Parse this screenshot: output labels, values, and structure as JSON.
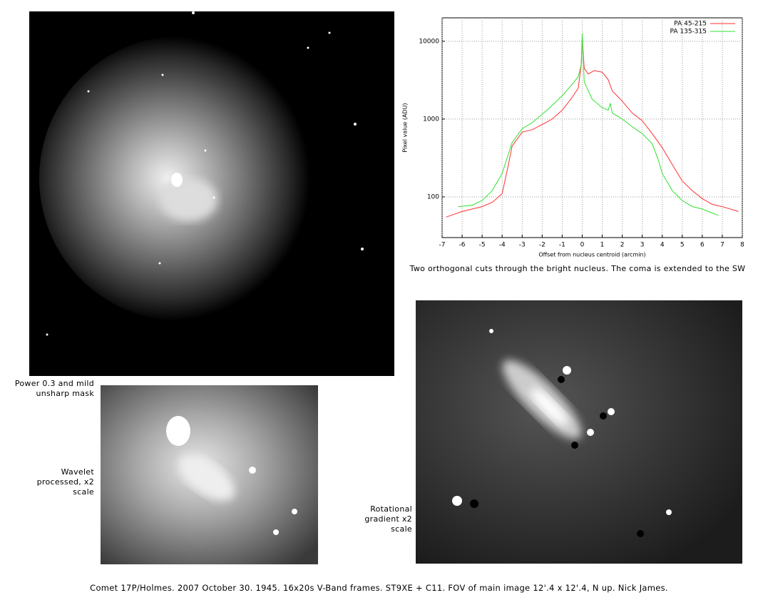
{
  "chart_data": {
    "type": "line",
    "x_label": "Offset from nucleus centroid (arcmin)",
    "y_label": "Pixel value (ADU)",
    "xlim": [
      -7,
      8
    ],
    "xticks": [
      -7,
      -6,
      -5,
      -4,
      -3,
      -2,
      -1,
      0,
      1,
      2,
      3,
      4,
      5,
      6,
      7,
      8
    ],
    "ylim": [
      30,
      20000
    ],
    "yticks": [
      100,
      1000,
      10000
    ],
    "log_y": true,
    "grid": true,
    "legend": "top-right",
    "series": [
      {
        "name": "PA 45-215",
        "color": "#ff3030",
        "x": [
          -6.8,
          -6,
          -5,
          -4.5,
          -4,
          -3.7,
          -3.5,
          -3,
          -2.5,
          -2,
          -1.5,
          -1,
          -0.5,
          -0.2,
          -0.05,
          0,
          0.1,
          0.3,
          0.6,
          1,
          1.3,
          1.5,
          2,
          2.5,
          3,
          3.5,
          4,
          4.5,
          5,
          5.5,
          6,
          6.5,
          7,
          7.8
        ],
        "values": [
          55,
          65,
          75,
          85,
          110,
          250,
          450,
          680,
          730,
          850,
          1000,
          1300,
          1900,
          2500,
          5000,
          11000,
          4500,
          3800,
          4200,
          4000,
          3200,
          2300,
          1700,
          1200,
          950,
          650,
          430,
          260,
          160,
          120,
          95,
          80,
          75,
          65
        ]
      },
      {
        "name": "PA 135-315",
        "color": "#30e030",
        "x": [
          -6.2,
          -5.5,
          -5,
          -4.5,
          -4,
          -3.5,
          -3,
          -2.5,
          -2,
          -1.5,
          -1,
          -0.5,
          -0.2,
          -0.05,
          0,
          0.1,
          0.5,
          1,
          1.3,
          1.4,
          1.5,
          2,
          2.5,
          3,
          3.5,
          3.8,
          4,
          4.5,
          5,
          5.5,
          6,
          6.5,
          6.8
        ],
        "values": [
          75,
          78,
          90,
          120,
          200,
          500,
          750,
          900,
          1150,
          1500,
          2000,
          2800,
          3500,
          5000,
          12500,
          3000,
          1800,
          1400,
          1300,
          1600,
          1200,
          1000,
          800,
          650,
          480,
          300,
          200,
          120,
          90,
          75,
          70,
          62,
          58
        ]
      }
    ]
  },
  "captions": {
    "chart": "Two orthogonal cuts through the bright nucleus. The coma is extended to the SW",
    "power": "Power 0.3 and mild unsharp mask",
    "wavelet": "Wavelet processed, x2 scale",
    "rotational": "Rotational gradient x2 scale",
    "footer": "Comet 17P/Holmes. 2007 October 30. 1945. 16x20s V-Band frames. ST9XE + C11. FOV of main image 12'.4 x 12'.4, N up. Nick James."
  }
}
